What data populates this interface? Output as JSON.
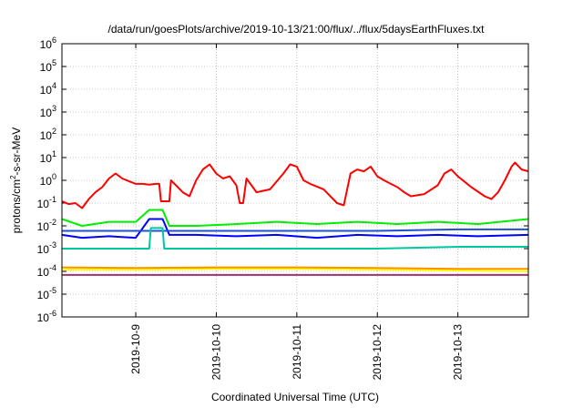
{
  "chart_data": {
    "type": "line",
    "title": "/data/run/goesPlots/archive/2019-10-13/21:00/flux/../flux/5daysEarthFluxes.txt",
    "xlabel": "Coordinated Universal Time (UTC)",
    "ylabel": {
      "base": "protons/cm",
      "sup": "2",
      "rest": "-s-sr-MeV"
    },
    "x_start": "2019-10-08T02:00",
    "x_end": "2019-10-13T21:00",
    "xticks": [
      "2019-10-9",
      "2019-10-10",
      "2019-10-11",
      "2019-10-12",
      "2019-10-13"
    ],
    "yscale": "log",
    "ylim": [
      1e-06,
      1000000.0
    ],
    "yticks": [
      {
        "base": "10",
        "exp": "6"
      },
      {
        "base": "10",
        "exp": "5"
      },
      {
        "base": "10",
        "exp": "4"
      },
      {
        "base": "10",
        "exp": "3"
      },
      {
        "base": "10",
        "exp": "2"
      },
      {
        "base": "10",
        "exp": "1"
      },
      {
        "base": "10",
        "exp": "0"
      },
      {
        "base": "10",
        "exp": "-1"
      },
      {
        "base": "10",
        "exp": "-2"
      },
      {
        "base": "10",
        "exp": "-3"
      },
      {
        "base": "10",
        "exp": "-4"
      },
      {
        "base": "10",
        "exp": "-5"
      },
      {
        "base": "10",
        "exp": "-6"
      }
    ],
    "grid": true,
    "x_grid_days": [
      "2019-10-9",
      "2019-10-10",
      "2019-10-11",
      "2019-10-12",
      "2019-10-13"
    ],
    "series": [
      {
        "color": "#ff0000",
        "points": [
          [
            "2019-10-08T02:00",
            0.12
          ],
          [
            "2019-10-08T04:00",
            0.09
          ],
          [
            "2019-10-08T06:00",
            0.1
          ],
          [
            "2019-10-08T08:00",
            0.06
          ],
          [
            "2019-10-08T10:00",
            0.15
          ],
          [
            "2019-10-08T12:00",
            0.3
          ],
          [
            "2019-10-08T14:00",
            0.5
          ],
          [
            "2019-10-08T16:00",
            1.2
          ],
          [
            "2019-10-08T18:00",
            2.0
          ],
          [
            "2019-10-08T20:00",
            1.2
          ],
          [
            "2019-10-08T22:00",
            0.9
          ],
          [
            "2019-10-09T00:00",
            0.7
          ],
          [
            "2019-10-09T02:00",
            0.7
          ],
          [
            "2019-10-09T04:00",
            0.65
          ],
          [
            "2019-10-09T06:00",
            0.7
          ],
          [
            "2019-10-09T07:00",
            0.7
          ],
          [
            "2019-10-09T07:30",
            0.12
          ],
          [
            "2019-10-09T09:00",
            0.12
          ],
          [
            "2019-10-09T10:00",
            0.12
          ],
          [
            "2019-10-09T10:30",
            1.0
          ],
          [
            "2019-10-09T12:00",
            0.6
          ],
          [
            "2019-10-09T14:00",
            0.3
          ],
          [
            "2019-10-09T16:00",
            0.2
          ],
          [
            "2019-10-09T18:00",
            1.0
          ],
          [
            "2019-10-09T20:00",
            3.0
          ],
          [
            "2019-10-09T22:00",
            5.0
          ],
          [
            "2019-10-10T00:00",
            2.0
          ],
          [
            "2019-10-10T02:00",
            1.2
          ],
          [
            "2019-10-10T04:00",
            1.5
          ],
          [
            "2019-10-10T06:00",
            0.6
          ],
          [
            "2019-10-10T07:00",
            0.1
          ],
          [
            "2019-10-10T08:00",
            0.1
          ],
          [
            "2019-10-10T09:00",
            1.2
          ],
          [
            "2019-10-10T12:00",
            0.3
          ],
          [
            "2019-10-10T16:00",
            0.4
          ],
          [
            "2019-10-10T20:00",
            2.0
          ],
          [
            "2019-10-10T22:00",
            5.0
          ],
          [
            "2019-10-11T00:00",
            4.0
          ],
          [
            "2019-10-11T02:00",
            1.0
          ],
          [
            "2019-10-11T04:00",
            0.7
          ],
          [
            "2019-10-11T08:00",
            0.4
          ],
          [
            "2019-10-11T12:00",
            0.1
          ],
          [
            "2019-10-11T14:00",
            0.08
          ],
          [
            "2019-10-11T16:00",
            2.0
          ],
          [
            "2019-10-11T18:00",
            3.0
          ],
          [
            "2019-10-11T20:00",
            2.5
          ],
          [
            "2019-10-11T22:00",
            4.0
          ],
          [
            "2019-10-12T00:00",
            1.5
          ],
          [
            "2019-10-12T02:00",
            1.0
          ],
          [
            "2019-10-12T04:00",
            0.7
          ],
          [
            "2019-10-12T06:00",
            0.5
          ],
          [
            "2019-10-12T08:00",
            0.3
          ],
          [
            "2019-10-12T10:00",
            0.2
          ],
          [
            "2019-10-12T14:00",
            0.25
          ],
          [
            "2019-10-12T18:00",
            0.6
          ],
          [
            "2019-10-12T20:00",
            2.0
          ],
          [
            "2019-10-12T22:00",
            3.0
          ],
          [
            "2019-10-13T00:00",
            1.5
          ],
          [
            "2019-10-13T04:00",
            0.5
          ],
          [
            "2019-10-13T08:00",
            0.2
          ],
          [
            "2019-10-13T10:00",
            0.15
          ],
          [
            "2019-10-13T12:00",
            0.3
          ],
          [
            "2019-10-13T14:00",
            1.0
          ],
          [
            "2019-10-13T16:00",
            4.0
          ],
          [
            "2019-10-13T17:00",
            6.0
          ],
          [
            "2019-10-13T19:00",
            3.0
          ],
          [
            "2019-10-13T21:00",
            2.5
          ]
        ]
      },
      {
        "color": "#00ee00",
        "points": [
          [
            "2019-10-08T02:00",
            0.02
          ],
          [
            "2019-10-08T08:00",
            0.01
          ],
          [
            "2019-10-08T16:00",
            0.015
          ],
          [
            "2019-10-09T00:00",
            0.015
          ],
          [
            "2019-10-09T04:00",
            0.05
          ],
          [
            "2019-10-09T08:00",
            0.05
          ],
          [
            "2019-10-09T10:00",
            0.01
          ],
          [
            "2019-10-09T18:00",
            0.01
          ],
          [
            "2019-10-10T06:00",
            0.012
          ],
          [
            "2019-10-10T18:00",
            0.015
          ],
          [
            "2019-10-11T06:00",
            0.012
          ],
          [
            "2019-10-11T18:00",
            0.015
          ],
          [
            "2019-10-12T06:00",
            0.012
          ],
          [
            "2019-10-12T18:00",
            0.015
          ],
          [
            "2019-10-13T06:00",
            0.012
          ],
          [
            "2019-10-13T21:00",
            0.02
          ]
        ]
      },
      {
        "color": "#0000ff",
        "points": [
          [
            "2019-10-08T02:00",
            0.004
          ],
          [
            "2019-10-08T08:00",
            0.003
          ],
          [
            "2019-10-08T16:00",
            0.0035
          ],
          [
            "2019-10-09T00:00",
            0.003
          ],
          [
            "2019-10-09T04:00",
            0.02
          ],
          [
            "2019-10-09T08:00",
            0.02
          ],
          [
            "2019-10-09T10:00",
            0.004
          ],
          [
            "2019-10-09T18:00",
            0.004
          ],
          [
            "2019-10-10T06:00",
            0.0035
          ],
          [
            "2019-10-10T18:00",
            0.004
          ],
          [
            "2019-10-11T06:00",
            0.003
          ],
          [
            "2019-10-11T18:00",
            0.004
          ],
          [
            "2019-10-12T06:00",
            0.0035
          ],
          [
            "2019-10-12T18:00",
            0.004
          ],
          [
            "2019-10-13T06:00",
            0.0035
          ],
          [
            "2019-10-13T21:00",
            0.004
          ]
        ]
      },
      {
        "color": "#2050d0",
        "points": [
          [
            "2019-10-08T02:00",
            0.006
          ],
          [
            "2019-10-09T04:00",
            0.006
          ],
          [
            "2019-10-09T08:00",
            0.006
          ],
          [
            "2019-10-10T00:00",
            0.006
          ],
          [
            "2019-10-11T00:00",
            0.006
          ],
          [
            "2019-10-12T00:00",
            0.006
          ],
          [
            "2019-10-13T00:00",
            0.007
          ],
          [
            "2019-10-13T21:00",
            0.007
          ]
        ]
      },
      {
        "color": "#00c8a0",
        "points": [
          [
            "2019-10-08T02:00",
            0.001
          ],
          [
            "2019-10-09T04:00",
            0.001
          ],
          [
            "2019-10-09T04:30",
            0.008
          ],
          [
            "2019-10-09T08:00",
            0.008
          ],
          [
            "2019-10-09T08:30",
            0.001
          ],
          [
            "2019-10-10T00:00",
            0.001
          ],
          [
            "2019-10-11T00:00",
            0.001
          ],
          [
            "2019-10-12T00:00",
            0.001
          ],
          [
            "2019-10-13T00:00",
            0.0012
          ],
          [
            "2019-10-13T21:00",
            0.0012
          ]
        ]
      },
      {
        "color": "#ffff00",
        "points": [
          [
            "2019-10-08T02:00",
            0.00012
          ],
          [
            "2019-10-09T00:00",
            0.00012
          ],
          [
            "2019-10-10T00:00",
            0.00013
          ],
          [
            "2019-10-11T00:00",
            0.00013
          ],
          [
            "2019-10-12T00:00",
            0.00012
          ],
          [
            "2019-10-13T00:00",
            0.00011
          ],
          [
            "2019-10-13T21:00",
            0.0001
          ]
        ]
      },
      {
        "color": "#ff9000",
        "points": [
          [
            "2019-10-08T02:00",
            0.00015
          ],
          [
            "2019-10-09T00:00",
            0.00014
          ],
          [
            "2019-10-10T00:00",
            0.00015
          ],
          [
            "2019-10-11T00:00",
            0.00015
          ],
          [
            "2019-10-12T00:00",
            0.00014
          ],
          [
            "2019-10-13T00:00",
            0.00013
          ],
          [
            "2019-10-13T21:00",
            0.00013
          ]
        ]
      },
      {
        "color": "#a03070",
        "points": [
          [
            "2019-10-08T02:00",
            7e-05
          ],
          [
            "2019-10-09T00:00",
            7e-05
          ],
          [
            "2019-10-10T00:00",
            7e-05
          ],
          [
            "2019-10-11T00:00",
            7e-05
          ],
          [
            "2019-10-12T00:00",
            7e-05
          ],
          [
            "2019-10-13T00:00",
            7e-05
          ],
          [
            "2019-10-13T21:00",
            7e-05
          ]
        ]
      }
    ]
  }
}
